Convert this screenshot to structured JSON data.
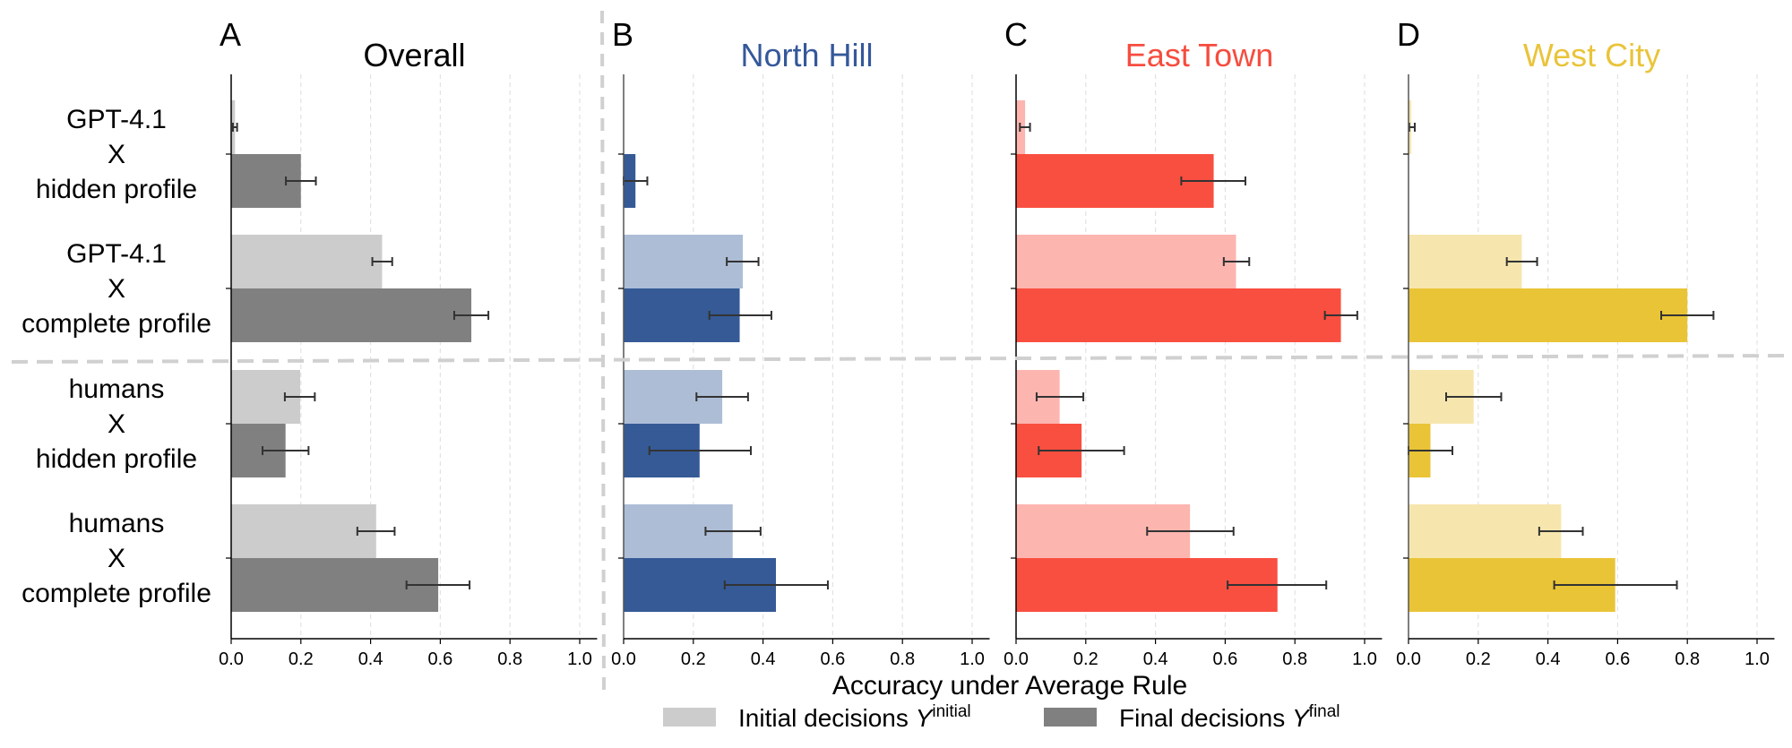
{
  "chart_data": {
    "type": "bar",
    "orientation": "horizontal",
    "xlabel": "Accuracy under Average Rule",
    "xlim": [
      0,
      1.05
    ],
    "xticks": [
      "0.0",
      "0.2",
      "0.4",
      "0.6",
      "0.8",
      "1.0"
    ],
    "grid": "vertical dashed",
    "categories": [
      [
        "GPT-4.1",
        "X",
        "hidden profile"
      ],
      [
        "GPT-4.1",
        "X",
        "complete profile"
      ],
      [
        "humans",
        "X",
        "hidden profile"
      ],
      [
        "humans",
        "X",
        "complete profile"
      ]
    ],
    "legend": {
      "placement": "bottom-center",
      "items": [
        {
          "label": "Initial decisions ",
          "symbol": "Y",
          "sup": "initial",
          "color": "#cccccc"
        },
        {
          "label": "Final decisions ",
          "symbol": "Y",
          "sup": "final",
          "color": "#808080"
        }
      ]
    },
    "panels": [
      {
        "letter": "A",
        "title": "Overall",
        "title_color": "#000000",
        "initial_color": "#cccccc",
        "final_color": "#808080",
        "series": [
          {
            "name": "Initial decisions",
            "values": [
              0.011,
              0.433,
              0.198,
              0.416
            ],
            "err_low": [
              0.005,
              0.405,
              0.154,
              0.362
            ],
            "err_high": [
              0.017,
              0.462,
              0.24,
              0.469
            ]
          },
          {
            "name": "Final decisions",
            "values": [
              0.2,
              0.689,
              0.156,
              0.594
            ],
            "err_low": [
              0.157,
              0.64,
              0.09,
              0.503
            ],
            "err_high": [
              0.243,
              0.738,
              0.222,
              0.684
            ]
          }
        ]
      },
      {
        "letter": "B",
        "title": "North Hill",
        "title_color": "#34589a",
        "initial_color": "#adbdd6",
        "final_color": "#355a96",
        "series": [
          {
            "name": "Initial decisions",
            "values": [
              0.0,
              0.342,
              0.283,
              0.313
            ],
            "err_low": [
              null,
              0.296,
              0.209,
              0.235
            ],
            "err_high": [
              null,
              0.387,
              0.357,
              0.393
            ]
          },
          {
            "name": "Final decisions",
            "values": [
              0.034,
              0.333,
              0.218,
              0.437
            ],
            "err_low": [
              0.0,
              0.246,
              0.074,
              0.29
            ],
            "err_high": [
              0.068,
              0.424,
              0.365,
              0.586
            ]
          }
        ]
      },
      {
        "letter": "C",
        "title": "East Town",
        "title_color": "#f64c3e",
        "initial_color": "#fdb5b0",
        "final_color": "#f94f40",
        "series": [
          {
            "name": "Initial decisions",
            "values": [
              0.026,
              0.631,
              0.125,
              0.499
            ],
            "err_low": [
              0.011,
              0.596,
              0.059,
              0.376
            ],
            "err_high": [
              0.04,
              0.669,
              0.193,
              0.624
            ]
          },
          {
            "name": "Final decisions",
            "values": [
              0.567,
              0.932,
              0.188,
              0.75
            ],
            "err_low": [
              0.474,
              0.886,
              0.065,
              0.607
            ],
            "err_high": [
              0.658,
              0.979,
              0.31,
              0.89
            ]
          }
        ]
      },
      {
        "letter": "D",
        "title": "West City",
        "title_color": "#e9c43a",
        "initial_color": "#f6e6ae",
        "final_color": "#e9c436",
        "series": [
          {
            "name": "Initial decisions",
            "values": [
              0.008,
              0.325,
              0.187,
              0.438
            ],
            "err_low": [
              0.002,
              0.282,
              0.108,
              0.375
            ],
            "err_high": [
              0.018,
              0.369,
              0.266,
              0.5
            ]
          },
          {
            "name": "Final decisions",
            "values": [
              0.0,
              0.8,
              0.063,
              0.593
            ],
            "err_low": [
              null,
              0.725,
              0.0,
              0.418
            ],
            "err_high": [
              null,
              0.875,
              0.126,
              0.77
            ]
          }
        ]
      }
    ]
  }
}
